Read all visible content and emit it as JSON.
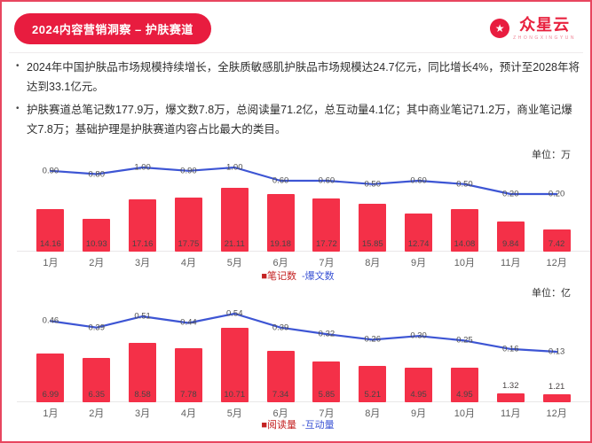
{
  "page": {
    "title": "2024内容营销洞察 – 护肤赛道",
    "logo": {
      "name": "众星云",
      "tagline": "ZHONGXINGYUN",
      "star": "★"
    }
  },
  "bullets": [
    {
      "marker": "•",
      "text": "2024年中国护肤品市场规模持续增长，全肤质敏感肌护肤品市场规模达24.7亿元，同比增长4%，预计至2028年将达到33.1亿元。"
    },
    {
      "marker": "•",
      "text": "护肤赛道总笔记数177.9万，爆文数7.8万，总阅读量71.2亿，总互动量4.1亿；其中商业笔记71.2万，商业笔记爆文7.8万；基础护理是护肤赛道内容占比最大的类目。"
    }
  ],
  "colors": {
    "accent_red": "#e81c3f",
    "bar_red": "#f43048",
    "line_blue": "#3d55d4",
    "legend_red": "#c42222"
  },
  "chart_data": [
    {
      "type": "bar",
      "title": "护肤赛道笔记数与爆文数（按月）",
      "unit_label": "单位：万",
      "categories": [
        "1月",
        "2月",
        "3月",
        "4月",
        "5月",
        "6月",
        "7月",
        "8月",
        "9月",
        "10月",
        "11月",
        "12月"
      ],
      "series": [
        {
          "name": "笔记数",
          "type": "bar",
          "color": "#f43048",
          "values": [
            14.16,
            10.93,
            17.16,
            17.75,
            21.11,
            19.18,
            17.72,
            15.85,
            12.74,
            14.08,
            9.84,
            7.42
          ]
        },
        {
          "name": "爆文数",
          "type": "line",
          "color": "#3d55d4",
          "values": [
            0.9,
            0.8,
            1.0,
            0.9,
            1.0,
            0.6,
            0.6,
            0.5,
            0.6,
            0.5,
            0.2,
            0.2
          ]
        }
      ],
      "legend": [
        {
          "marker": "■",
          "label": "笔记数",
          "color": "#c42222"
        },
        {
          "marker": "-",
          "label": "爆文数",
          "color": "#3d55d4"
        }
      ],
      "grid": "off",
      "legend_position": "bottom-center"
    },
    {
      "type": "bar",
      "title": "护肤赛道阅读量与互动量（按月）",
      "unit_label": "单位：亿",
      "categories": [
        "1月",
        "2月",
        "3月",
        "4月",
        "5月",
        "6月",
        "7月",
        "8月",
        "9月",
        "10月",
        "11月",
        "12月"
      ],
      "series": [
        {
          "name": "阅读量",
          "type": "bar",
          "color": "#f43048",
          "values": [
            6.99,
            6.35,
            8.58,
            7.78,
            10.71,
            7.34,
            5.85,
            5.21,
            4.95,
            4.95,
            1.32,
            1.21
          ]
        },
        {
          "name": "互动量",
          "type": "line",
          "color": "#3d55d4",
          "values": [
            0.46,
            0.39,
            0.51,
            0.44,
            0.54,
            0.39,
            0.32,
            0.26,
            0.3,
            0.25,
            0.16,
            0.13
          ]
        }
      ],
      "legend": [
        {
          "marker": "■",
          "label": "阅读量",
          "color": "#c42222"
        },
        {
          "marker": "-",
          "label": "互动量",
          "color": "#3d55d4"
        }
      ],
      "grid": "off",
      "legend_position": "bottom-center"
    }
  ]
}
